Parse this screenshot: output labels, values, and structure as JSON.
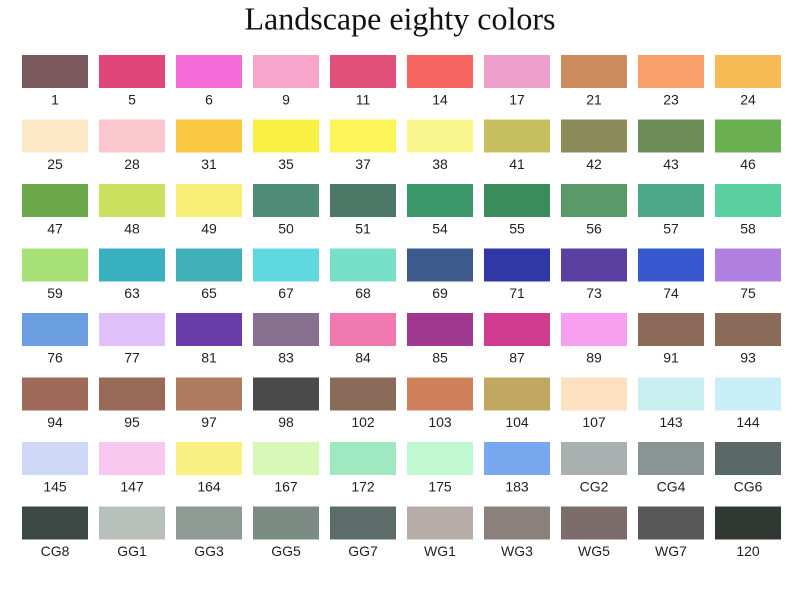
{
  "title": "Landscape eighty colors",
  "rows": [
    [
      {
        "label": "1",
        "color": "#7a5a5e"
      },
      {
        "label": "5",
        "color": "#e0457a"
      },
      {
        "label": "6",
        "color": "#f56bd8"
      },
      {
        "label": "9",
        "color": "#f8a6cc"
      },
      {
        "label": "11",
        "color": "#e0507a"
      },
      {
        "label": "14",
        "color": "#f5645e"
      },
      {
        "label": "17",
        "color": "#eda0cc"
      },
      {
        "label": "21",
        "color": "#cc8c5e"
      },
      {
        "label": "23",
        "color": "#f7a06a"
      },
      {
        "label": "24",
        "color": "#f7bb55"
      }
    ],
    [
      {
        "label": "25",
        "color": "#fde8c8"
      },
      {
        "label": "28",
        "color": "#fbc8cf"
      },
      {
        "label": "31",
        "color": "#f8c842"
      },
      {
        "label": "35",
        "color": "#f8f042"
      },
      {
        "label": "37",
        "color": "#fbf55a"
      },
      {
        "label": "38",
        "color": "#f8f58c"
      },
      {
        "label": "41",
        "color": "#c8c060"
      },
      {
        "label": "42",
        "color": "#8a8c5a"
      },
      {
        "label": "43",
        "color": "#6c8c58"
      },
      {
        "label": "46",
        "color": "#6ab050"
      }
    ],
    [
      {
        "label": "47",
        "color": "#6aa84a"
      },
      {
        "label": "48",
        "color": "#cce060"
      },
      {
        "label": "49",
        "color": "#f8ee78"
      },
      {
        "label": "50",
        "color": "#4e8c78"
      },
      {
        "label": "51",
        "color": "#4c7868"
      },
      {
        "label": "54",
        "color": "#3c9a6a"
      },
      {
        "label": "55",
        "color": "#3a8c5a"
      },
      {
        "label": "56",
        "color": "#5a9a68"
      },
      {
        "label": "57",
        "color": "#4aa888"
      },
      {
        "label": "58",
        "color": "#5ad0a0"
      }
    ],
    [
      {
        "label": "59",
        "color": "#a8e078"
      },
      {
        "label": "63",
        "color": "#38b0c0"
      },
      {
        "label": "65",
        "color": "#40b0b8"
      },
      {
        "label": "67",
        "color": "#60d8e0"
      },
      {
        "label": "68",
        "color": "#78e0c8"
      },
      {
        "label": "69",
        "color": "#3c5a8c"
      },
      {
        "label": "71",
        "color": "#3038a8"
      },
      {
        "label": "73",
        "color": "#5a40a0"
      },
      {
        "label": "74",
        "color": "#3858d0"
      },
      {
        "label": "75",
        "color": "#b080e0"
      }
    ],
    [
      {
        "label": "76",
        "color": "#6a9ee0"
      },
      {
        "label": "77",
        "color": "#e0c0f8"
      },
      {
        "label": "81",
        "color": "#6a3ca8"
      },
      {
        "label": "83",
        "color": "#8a7090"
      },
      {
        "label": "84",
        "color": "#f07ab0"
      },
      {
        "label": "85",
        "color": "#a03890"
      },
      {
        "label": "87",
        "color": "#d03c90"
      },
      {
        "label": "89",
        "color": "#f8a0f0"
      },
      {
        "label": "91",
        "color": "#8c6a5a"
      },
      {
        "label": "93",
        "color": "#8a6a58"
      }
    ],
    [
      {
        "label": "94",
        "color": "#a06a5a"
      },
      {
        "label": "95",
        "color": "#9a6a58"
      },
      {
        "label": "97",
        "color": "#b07a60"
      },
      {
        "label": "98",
        "color": "#4a4a4a"
      },
      {
        "label": "102",
        "color": "#8a6a58"
      },
      {
        "label": "103",
        "color": "#d0805a"
      },
      {
        "label": "104",
        "color": "#c0a860"
      },
      {
        "label": "107",
        "color": "#fce0c0"
      },
      {
        "label": "143",
        "color": "#c8eef0"
      },
      {
        "label": "144",
        "color": "#c8eef8"
      }
    ],
    [
      {
        "label": "145",
        "color": "#d0d8f8"
      },
      {
        "label": "147",
        "color": "#f8c8f0"
      },
      {
        "label": "164",
        "color": "#f8f080"
      },
      {
        "label": "167",
        "color": "#d8f8b8"
      },
      {
        "label": "172",
        "color": "#a0e8c0"
      },
      {
        "label": "175",
        "color": "#c0f8d0"
      },
      {
        "label": "183",
        "color": "#78a8f0"
      },
      {
        "label": "CG2",
        "color": "#a8b0b0"
      },
      {
        "label": "CG4",
        "color": "#8a9494"
      },
      {
        "label": "CG6",
        "color": "#5a6868"
      }
    ],
    [
      {
        "label": "CG8",
        "color": "#3c4844"
      },
      {
        "label": "GG1",
        "color": "#b8c0bc"
      },
      {
        "label": "GG3",
        "color": "#909a94"
      },
      {
        "label": "GG5",
        "color": "#7c8c84"
      },
      {
        "label": "GG7",
        "color": "#5c6c68"
      },
      {
        "label": "WG1",
        "color": "#b8aca8"
      },
      {
        "label": "WG3",
        "color": "#8c807c"
      },
      {
        "label": "WG5",
        "color": "#7c6c6c"
      },
      {
        "label": "WG7",
        "color": "#585858"
      },
      {
        "label": "120",
        "color": "#303834"
      }
    ]
  ]
}
